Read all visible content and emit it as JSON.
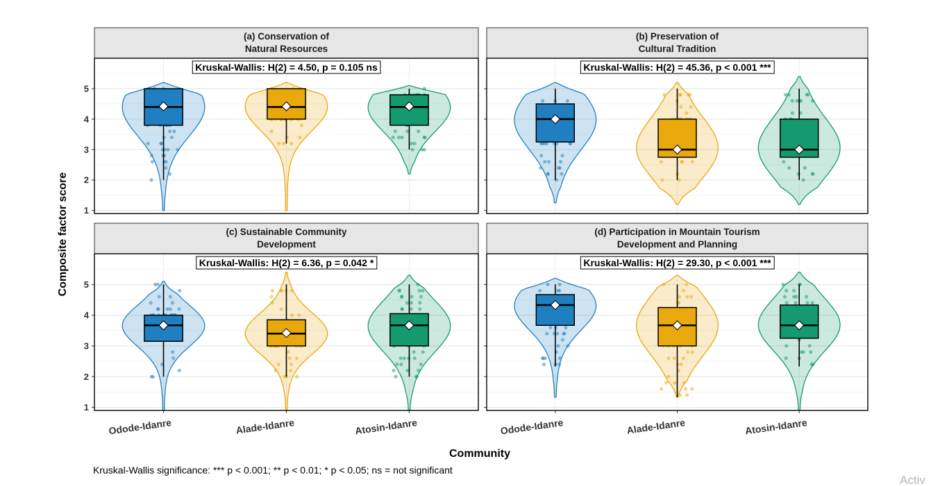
{
  "chart_data": {
    "type": "violin-box",
    "ylabel": "Composite factor score",
    "xlabel": "Community",
    "categories": [
      "Odode-Idanre",
      "Alade-Idanre",
      "Atosin-Idanre"
    ],
    "y_ticks": [
      1,
      2,
      3,
      4,
      5
    ],
    "ylim": [
      0.9,
      6.0
    ],
    "colors": {
      "Odode-Idanre": "#1f7fc1",
      "Alade-Idanre": "#e9a80c",
      "Atosin-Idanre": "#149a6e"
    },
    "caption": "Kruskal-Wallis significance: *** p < 0.001; ** p < 0.01; * p < 0.05; ns = not significant",
    "panels": [
      {
        "title_line1": "(a) Conservation of",
        "title_line2": "Natural Resources",
        "test": "Kruskal-Wallis: H(2) = 4.50, p = 0.105 ns",
        "groups": [
          {
            "q1": 3.8,
            "median": 4.4,
            "q3": 5.0,
            "whisker_low": 2.0,
            "whisker_high": 5.0,
            "mean": 4.42,
            "min": 1.0,
            "max": 5.2
          },
          {
            "q1": 4.0,
            "median": 4.4,
            "q3": 5.0,
            "whisker_low": 3.2,
            "whisker_high": 5.0,
            "mean": 4.42,
            "min": 1.0,
            "max": 5.2
          },
          {
            "q1": 3.8,
            "median": 4.4,
            "q3": 4.8,
            "whisker_low": 3.0,
            "whisker_high": 5.0,
            "mean": 4.42,
            "min": 2.2,
            "max": 5.1
          }
        ]
      },
      {
        "title_line1": "(b) Preservation of",
        "title_line2": "Cultural Tradition",
        "test": "Kruskal-Wallis: H(2) = 45.36, p < 0.001 ***",
        "groups": [
          {
            "q1": 3.25,
            "median": 4.0,
            "q3": 4.5,
            "whisker_low": 2.0,
            "whisker_high": 5.0,
            "mean": 4.0,
            "min": 1.25,
            "max": 5.2
          },
          {
            "q1": 2.75,
            "median": 3.0,
            "q3": 4.0,
            "whisker_low": 2.0,
            "whisker_high": 5.0,
            "mean": 3.0,
            "min": 1.2,
            "max": 5.2
          },
          {
            "q1": 2.75,
            "median": 3.0,
            "q3": 4.0,
            "whisker_low": 2.0,
            "whisker_high": 5.0,
            "mean": 3.0,
            "min": 1.2,
            "max": 5.4
          }
        ]
      },
      {
        "title_line1": "(c) Sustainable Community",
        "title_line2": "Development",
        "test": "Kruskal-Wallis: H(2) = 6.36, p = 0.042 *",
        "groups": [
          {
            "q1": 3.15,
            "median": 3.67,
            "q3": 4.0,
            "whisker_low": 2.0,
            "whisker_high": 5.0,
            "mean": 3.67,
            "min": 0.9,
            "max": 5.1
          },
          {
            "q1": 3.0,
            "median": 3.4,
            "q3": 3.85,
            "whisker_low": 2.0,
            "whisker_high": 5.0,
            "mean": 3.42,
            "min": 0.9,
            "max": 5.4
          },
          {
            "q1": 3.0,
            "median": 3.67,
            "q3": 4.05,
            "whisker_low": 2.0,
            "whisker_high": 5.0,
            "mean": 3.67,
            "min": 0.9,
            "max": 5.3
          }
        ]
      },
      {
        "title_line1": "(d) Participation in Mountain Tourism",
        "title_line2": "Development and Planning",
        "test": "Kruskal-Wallis: H(2) = 29.30, p < 0.001 ***",
        "groups": [
          {
            "q1": 3.67,
            "median": 4.33,
            "q3": 4.67,
            "whisker_low": 2.33,
            "whisker_high": 5.0,
            "mean": 4.33,
            "min": 1.33,
            "max": 5.2
          },
          {
            "q1": 3.0,
            "median": 3.67,
            "q3": 4.25,
            "whisker_low": 1.33,
            "whisker_high": 5.0,
            "mean": 3.67,
            "min": 1.33,
            "max": 5.3
          },
          {
            "q1": 3.25,
            "median": 3.67,
            "q3": 4.33,
            "whisker_low": 2.33,
            "whisker_high": 5.0,
            "mean": 3.67,
            "min": 0.9,
            "max": 5.4
          }
        ]
      }
    ]
  },
  "watermark": "Activ"
}
